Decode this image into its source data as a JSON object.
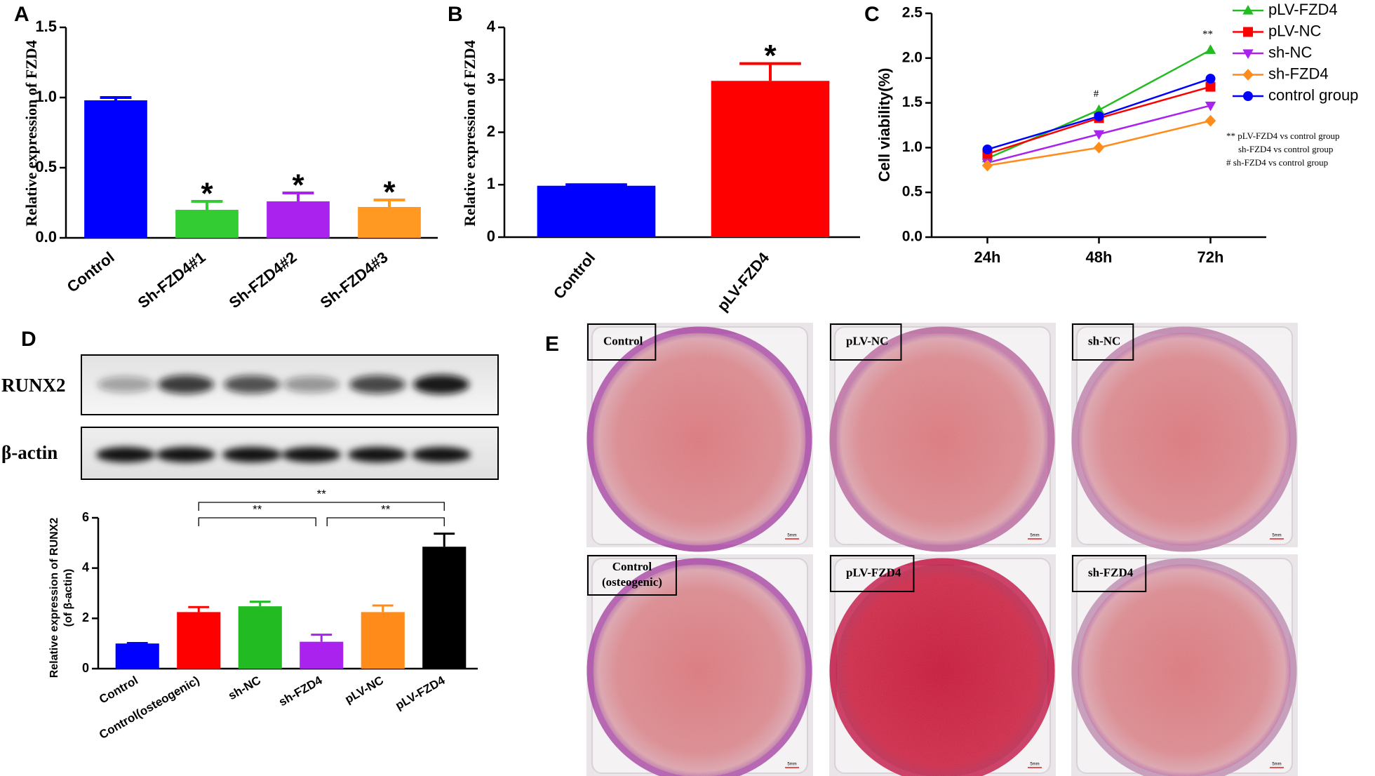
{
  "chart_data": [
    {
      "type": "bar",
      "panel": "A",
      "ylabel": "Relative expression of FZD4",
      "categories": [
        "Control",
        "Sh-FZD4#1",
        "Sh-FZD4#2",
        "Sh-FZD4#3"
      ],
      "values": [
        0.98,
        0.2,
        0.26,
        0.22
      ],
      "errors": [
        0.02,
        0.06,
        0.06,
        0.05
      ],
      "significance": [
        null,
        "*",
        "*",
        "*"
      ],
      "colors": [
        "#0000ff",
        "#33cc33",
        "#aa22ee",
        "#ff9922"
      ],
      "ylim": [
        0,
        1.5
      ],
      "yticks": [
        {
          "value": 0,
          "label": "0.0"
        },
        0.5,
        {
          "value": 1,
          "label": "1.0"
        },
        1.5
      ]
    },
    {
      "type": "bar",
      "panel": "B",
      "ylabel": "Relative expression of FZD4",
      "categories": [
        "Control",
        "pLV-FZD4"
      ],
      "values": [
        0.98,
        2.98
      ],
      "errors": [
        0.02,
        0.33
      ],
      "significance": [
        null,
        "*"
      ],
      "colors": [
        "#0000ff",
        "#ff0000"
      ],
      "ylim": [
        0,
        4
      ],
      "yticks": [
        0,
        1,
        2,
        3,
        4
      ]
    },
    {
      "type": "line",
      "panel": "C",
      "ylabel": "Cell viability(%)",
      "categories": [
        "24h",
        "48h",
        "72h"
      ],
      "series": [
        {
          "name": "pLV-FZD4",
          "color": "#22bb22",
          "marker": "triangle-up",
          "values": [
            0.88,
            1.42,
            2.09
          ]
        },
        {
          "name": "pLV-NC",
          "color": "#ff0000",
          "marker": "square",
          "values": [
            0.93,
            1.33,
            1.68
          ]
        },
        {
          "name": "sh-NC",
          "color": "#aa22ee",
          "marker": "triangle-down",
          "values": [
            0.83,
            1.15,
            1.47
          ]
        },
        {
          "name": "sh-FZD4",
          "color": "#ff8c1a",
          "marker": "diamond",
          "values": [
            0.8,
            1.0,
            1.3
          ]
        },
        {
          "name": "control group",
          "color": "#0000ff",
          "marker": "circle",
          "values": [
            0.98,
            1.35,
            1.77
          ]
        }
      ],
      "annotations": [
        {
          "category": "48h",
          "text": "#"
        },
        {
          "category": "72h",
          "text": "**"
        }
      ],
      "notes": [
        "** pLV-FZD4 vs control group",
        "sh-FZD4  vs control group",
        "#  sh-FZD4  vs control group"
      ],
      "legend": "top-right",
      "ylim": [
        0,
        2.5
      ],
      "yticks": [
        {
          "value": 0,
          "label": "0.0"
        },
        0.5,
        {
          "value": 1,
          "label": "1.0"
        },
        1.5,
        {
          "value": 2,
          "label": "2.0"
        },
        2.5
      ]
    },
    {
      "type": "bar",
      "panel": "D",
      "ylabel": [
        "Relative expression of RUNX2",
        "(of β-actin)"
      ],
      "categories": [
        "Control",
        "Control(osteogenic)",
        "sh-NC",
        "sh-FZD4",
        "pLV-NC",
        "pLV-FZD4"
      ],
      "values": [
        1.0,
        2.25,
        2.48,
        1.07,
        2.25,
        4.85
      ],
      "errors": [
        0.02,
        0.2,
        0.18,
        0.28,
        0.26,
        0.52
      ],
      "colors": [
        "#0000ff",
        "#ff0000",
        "#22bb22",
        "#aa22ee",
        "#ff8c1a",
        "#000000"
      ],
      "comparisons": [
        {
          "pair": [
            "Control(osteogenic)",
            "sh-FZD4"
          ],
          "label": "**"
        },
        {
          "pair": [
            "sh-FZD4",
            "pLV-FZD4"
          ],
          "label": "**"
        },
        {
          "pair": [
            "Control(osteogenic)",
            "pLV-FZD4"
          ],
          "label": "**"
        }
      ],
      "ylim": [
        0,
        6
      ],
      "yticks": [
        0,
        2,
        4,
        6
      ]
    }
  ],
  "blot": {
    "rows": [
      "RUNX2",
      "β-actin"
    ]
  },
  "photos": {
    "panel": "E",
    "labels": [
      [
        "Control"
      ],
      [
        "pLV-NC"
      ],
      [
        "sh-NC"
      ],
      [
        "Control",
        "(osteogenic)"
      ],
      [
        "pLV-FZD4"
      ],
      [
        "sh-FZD4"
      ]
    ],
    "scale": "5mm"
  }
}
